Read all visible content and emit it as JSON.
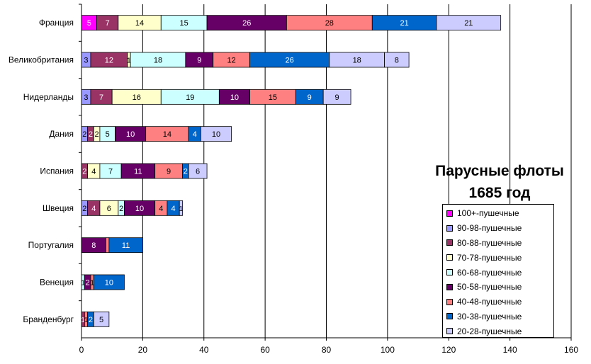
{
  "chart_data": {
    "type": "bar",
    "orientation": "horizontal",
    "stacked": true,
    "title": "Парусные флоты 1685 год",
    "title_lines": [
      "Парусные флоты",
      "1685 год"
    ],
    "categories": [
      "Франция",
      "Великобритания",
      "Нидерланды",
      "Дания",
      "Испания",
      "Швеция",
      "Португалия",
      "Венеция",
      "Бранденбург"
    ],
    "xlim": [
      0,
      160
    ],
    "x_ticks": [
      "0",
      "20",
      "40",
      "60",
      "80",
      "100",
      "120",
      "140",
      "160"
    ],
    "grid": true,
    "legend_position": "right",
    "series": [
      {
        "name": "100+-пушечные",
        "color": "#ff00ff",
        "values": [
          5,
          0,
          0,
          0,
          0,
          0,
          0,
          0,
          0
        ],
        "labels": [
          "5",
          "",
          "",
          "",
          "",
          "",
          "",
          "",
          ""
        ]
      },
      {
        "name": "90-98-пушечные",
        "color": "#9999ff",
        "values": [
          0,
          3,
          3,
          2,
          0,
          2,
          0,
          0,
          0
        ],
        "labels": [
          "",
          "3",
          "3",
          "2",
          "",
          "2",
          "",
          "",
          ""
        ]
      },
      {
        "name": "80-88-пушечные",
        "color": "#993366",
        "values": [
          7,
          12,
          7,
          2,
          2,
          4,
          0,
          0,
          1
        ],
        "labels": [
          "7",
          "12",
          "7",
          "2",
          "2",
          "4",
          "",
          "",
          "1"
        ]
      },
      {
        "name": "70-78-пушечные",
        "color": "#ffffcc",
        "values": [
          14,
          1,
          16,
          2,
          4,
          6,
          0,
          0,
          0
        ],
        "labels": [
          "14",
          "1",
          "16",
          "2",
          "4",
          "6",
          "",
          "",
          ""
        ]
      },
      {
        "name": "60-68-пушечные",
        "color": "#ccffff",
        "values": [
          15,
          18,
          19,
          5,
          7,
          2,
          0,
          1,
          0
        ],
        "labels": [
          "15",
          "18",
          "19",
          "5",
          "7",
          "2",
          "",
          "1",
          ""
        ]
      },
      {
        "name": "50-58-пушечные",
        "color": "#660066",
        "values": [
          26,
          9,
          10,
          10,
          11,
          10,
          8,
          2,
          0
        ],
        "labels": [
          "26",
          "9",
          "10",
          "10",
          "11",
          "10",
          "8",
          "2",
          ""
        ]
      },
      {
        "name": "40-48-пушечные",
        "color": "#ff8080",
        "values": [
          28,
          12,
          15,
          14,
          9,
          4,
          1,
          1,
          1
        ],
        "labels": [
          "28",
          "12",
          "15",
          "14",
          "9",
          "4",
          "",
          "1",
          "1"
        ]
      },
      {
        "name": "30-38-пушечные",
        "color": "#0066cc",
        "values": [
          21,
          26,
          9,
          4,
          2,
          4,
          11,
          10,
          2
        ],
        "labels": [
          "21",
          "26",
          "9",
          "4",
          "2",
          "4",
          "11",
          "10",
          "2"
        ]
      },
      {
        "name": "20-28-пушечные",
        "color": "#ccccff",
        "values": [
          21,
          18,
          9,
          10,
          6,
          1,
          0,
          0,
          5
        ],
        "labels": [
          "21",
          "18",
          "9",
          "10",
          "6",
          "1",
          "",
          "",
          "5"
        ]
      },
      {
        "name": "",
        "color": "#ccccff",
        "values": [
          0,
          8,
          0,
          0,
          0,
          0,
          0,
          0,
          0
        ],
        "labels": [
          "",
          "8",
          "",
          "",
          "",
          "",
          "",
          "",
          ""
        ]
      }
    ]
  }
}
